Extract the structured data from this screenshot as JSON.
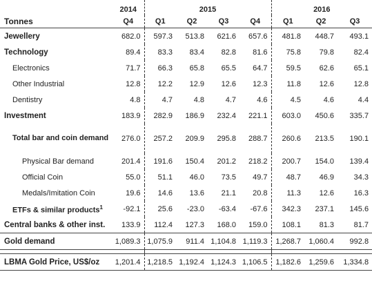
{
  "header": {
    "unit_label": "Tonnes",
    "years": [
      "2014",
      "2015",
      "2016"
    ],
    "quarters": [
      "Q4",
      "Q1",
      "Q2",
      "Q3",
      "Q4",
      "Q1",
      "Q2",
      "Q3"
    ]
  },
  "rows": [
    {
      "label": "Jewellery",
      "values": [
        "682.0",
        "597.3",
        "513.8",
        "621.6",
        "657.6",
        "481.8",
        "448.7",
        "493.1"
      ]
    },
    {
      "label": "Technology",
      "values": [
        "89.4",
        "83.3",
        "83.4",
        "82.8",
        "81.6",
        "75.8",
        "79.8",
        "82.4"
      ]
    },
    {
      "label": "Electronics",
      "values": [
        "71.7",
        "66.3",
        "65.8",
        "65.5",
        "64.7",
        "59.5",
        "62.6",
        "65.1"
      ]
    },
    {
      "label": "Other Industrial",
      "values": [
        "12.8",
        "12.2",
        "12.9",
        "12.6",
        "12.3",
        "11.8",
        "12.6",
        "12.8"
      ]
    },
    {
      "label": "Dentistry",
      "values": [
        "4.8",
        "4.7",
        "4.8",
        "4.7",
        "4.6",
        "4.5",
        "4.6",
        "4.4"
      ]
    },
    {
      "label": "Investment",
      "values": [
        "183.9",
        "282.9",
        "186.9",
        "232.4",
        "221.1",
        "603.0",
        "450.6",
        "335.7"
      ]
    },
    {
      "label": "Total bar and coin demand",
      "values": [
        "276.0",
        "257.2",
        "209.9",
        "295.8",
        "288.7",
        "260.6",
        "213.5",
        "190.1"
      ]
    },
    {
      "label": "Physical Bar demand",
      "values": [
        "201.4",
        "191.6",
        "150.4",
        "201.2",
        "218.2",
        "200.7",
        "154.0",
        "139.4"
      ]
    },
    {
      "label": "Official Coin",
      "values": [
        "55.0",
        "51.1",
        "46.0",
        "73.5",
        "49.7",
        "48.7",
        "46.9",
        "34.3"
      ]
    },
    {
      "label": "Medals/Imitation Coin",
      "values": [
        "19.6",
        "14.6",
        "13.6",
        "21.1",
        "20.8",
        "11.3",
        "12.6",
        "16.3"
      ]
    },
    {
      "label": "ETFs & similar products",
      "footnote": "1",
      "values": [
        "-92.1",
        "25.6",
        "-23.0",
        "-63.4",
        "-67.6",
        "342.3",
        "237.1",
        "145.6"
      ]
    },
    {
      "label": "Central banks & other inst.",
      "values": [
        "133.9",
        "112.4",
        "127.3",
        "168.0",
        "159.0",
        "108.1",
        "81.3",
        "81.7"
      ]
    },
    {
      "label": "Gold demand",
      "values": [
        "1,089.3",
        "1,075.9",
        "911.4",
        "1,104.8",
        "1,119.3",
        "1,268.7",
        "1,060.4",
        "992.8"
      ]
    },
    {
      "label": "LBMA Gold Price, US$/oz",
      "values": [
        "1,201.4",
        "1,218.5",
        "1,192.4",
        "1,124.3",
        "1,106.5",
        "1,182.6",
        "1,259.6",
        "1,334.8"
      ]
    }
  ]
}
